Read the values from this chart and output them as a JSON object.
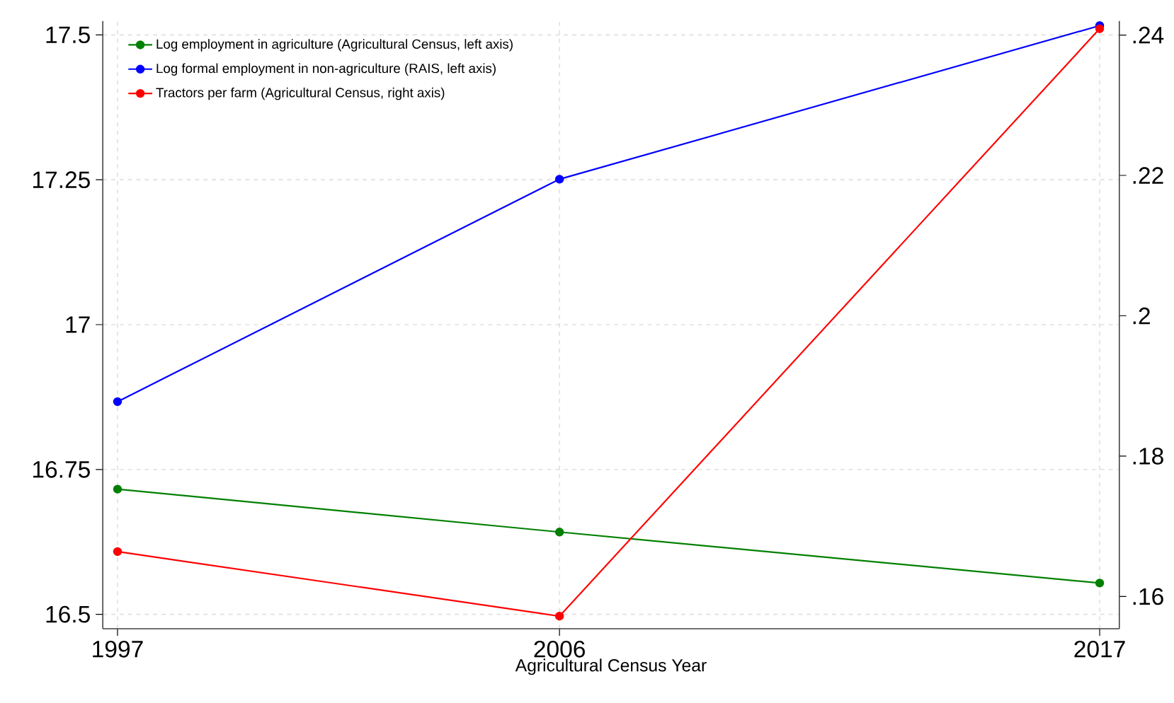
{
  "chart_data": {
    "type": "line",
    "xlabel": "Agricultural Census Year",
    "x": [
      1997,
      2006,
      2017
    ],
    "xlim": [
      1996.7,
      2017.4
    ],
    "xticks": [
      1997,
      2006,
      2017
    ],
    "ylim": [
      16.475,
      17.524
    ],
    "yticks": [
      16.5,
      16.75,
      17,
      17.25,
      17.5
    ],
    "y2lim": [
      0.1554,
      0.242
    ],
    "y2ticks": [
      {
        "value": 0.16,
        "label": ".16"
      },
      {
        "value": 0.18,
        "label": ".18"
      },
      {
        "value": 0.2,
        "label": ".2"
      },
      {
        "value": 0.22,
        "label": ".22"
      },
      {
        "value": 0.24,
        "label": ".24"
      }
    ],
    "series": [
      {
        "name": "Log employment in agriculture (Agricultural Census, left axis)",
        "color": "#008000",
        "values": [
          16.716,
          16.642,
          16.554
        ]
      },
      {
        "name": "Log formal employment in non-agriculture (RAIS, left axis)",
        "color": "#0000ff",
        "values": [
          16.867,
          17.251,
          17.516
        ]
      },
      {
        "name": "Tractors per farm (Agricultural Census, right axis)",
        "color": "#ff0000",
        "axis": "y2",
        "values": [
          0.1664,
          0.1572,
          0.2409
        ]
      }
    ],
    "grid": true,
    "legend": "top left",
    "marker": "circle",
    "line_style": "solid"
  }
}
